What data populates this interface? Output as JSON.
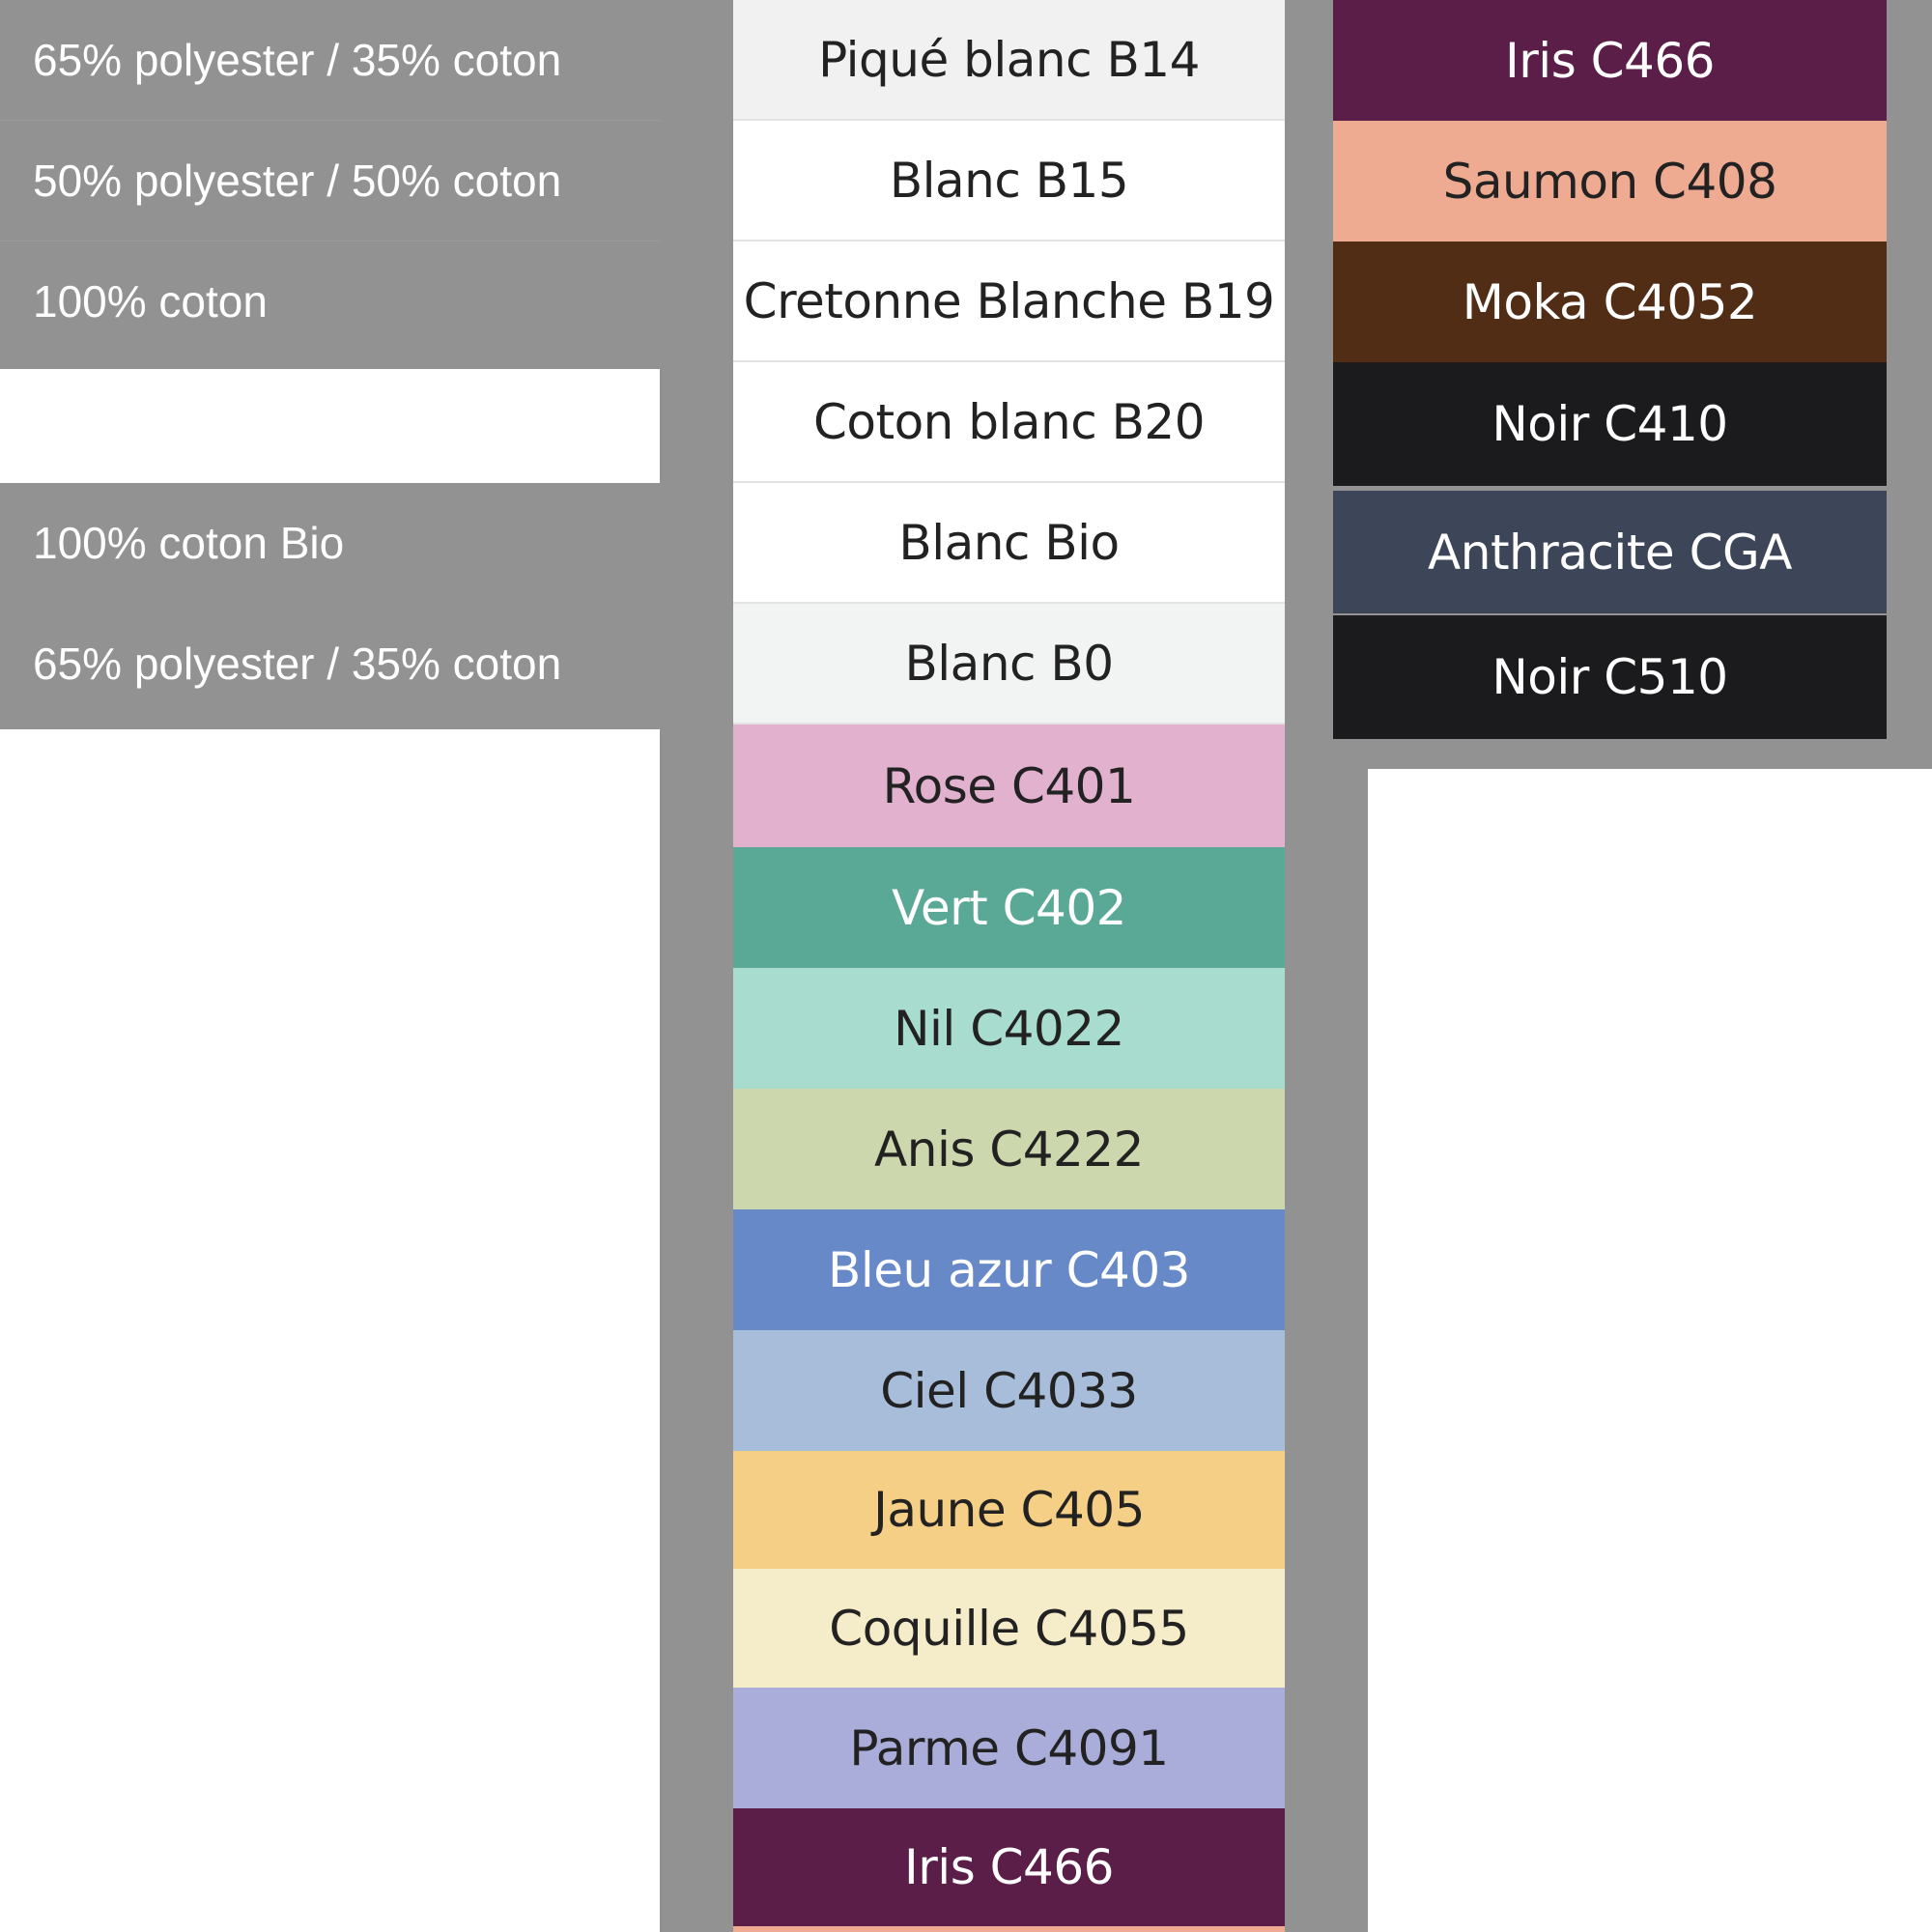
{
  "fabrics": [
    {
      "label": "65% polyester / 35% coton"
    },
    {
      "label": "50% polyester / 50% coton"
    },
    {
      "label": "100% coton"
    },
    {
      "label": "100% coton Bio"
    },
    {
      "label": "65% polyester / 35% coton"
    }
  ],
  "middle_swatches": [
    {
      "label": "Piqué blanc B14",
      "color": "#f1f1f1",
      "text": "#222222"
    },
    {
      "label": "Blanc B15",
      "color": "#ffffff",
      "text": "#222222"
    },
    {
      "label": "Cretonne Blanche B19",
      "color": "#ffffff",
      "text": "#222222"
    },
    {
      "label": "Coton blanc B20",
      "color": "#ffffff",
      "text": "#222222"
    },
    {
      "label": "Blanc Bio",
      "color": "#ffffff",
      "text": "#222222"
    },
    {
      "label": "Blanc B0",
      "color": "#f2f3f3",
      "text": "#222222"
    },
    {
      "label": "Rose C401",
      "color": "#e2b1cd",
      "text": "#222222"
    },
    {
      "label": "Vert C402",
      "color": "#5aa896",
      "text": "#ffffff"
    },
    {
      "label": "Nil C4022",
      "color": "#a8dccf",
      "text": "#222222"
    },
    {
      "label": "Anis C4222",
      "color": "#cdd7ae",
      "text": "#222222"
    },
    {
      "label": "Bleu azur C403",
      "color": "#6789c8",
      "text": "#ffffff"
    },
    {
      "label": "Ciel C4033",
      "color": "#a8bdda",
      "text": "#222222"
    },
    {
      "label": "Jaune C405",
      "color": "#f6cf86",
      "text": "#222222"
    },
    {
      "label": "Coquille C4055",
      "color": "#f5ecca",
      "text": "#222222"
    },
    {
      "label": "Parme C4091",
      "color": "#aaacda",
      "text": "#222222"
    },
    {
      "label": "Iris C466",
      "color": "#5a1e48",
      "text": "#ffffff"
    }
  ],
  "right_swatches": [
    {
      "label": "Iris C466",
      "color": "#5a1e48",
      "text": "#ffffff"
    },
    {
      "label": "Saumon C408",
      "color": "#eeab92",
      "text": "#222222"
    },
    {
      "label": "Moka C4052",
      "color": "#522d16",
      "text": "#ffffff"
    },
    {
      "label": "Noir C410",
      "color": "#1b1b1d",
      "text": "#ffffff"
    },
    {
      "label": "Anthracite CGA",
      "color": "#3d4658",
      "text": "#ffffff"
    },
    {
      "label": "Noir C510",
      "color": "#1b1b1d",
      "text": "#ffffff"
    }
  ]
}
